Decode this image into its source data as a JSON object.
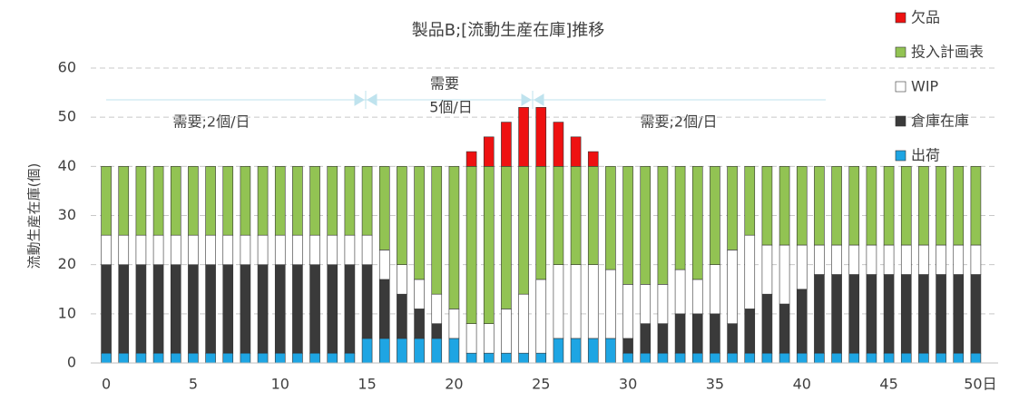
{
  "chart_data": {
    "type": "stacked_bar",
    "title": "製品B;[流動生産在庫]推移",
    "y_label": "流動生産在庫(個)",
    "annotations": [
      "需要;2個/日",
      "需要",
      "5個/日",
      "需要;2個/日"
    ],
    "x": [
      0,
      1,
      2,
      3,
      4,
      5,
      6,
      7,
      8,
      9,
      10,
      11,
      12,
      13,
      14,
      15,
      16,
      17,
      18,
      19,
      20,
      21,
      22,
      23,
      24,
      25,
      26,
      27,
      28,
      29,
      30,
      31,
      32,
      33,
      34,
      35,
      36,
      37,
      38,
      39,
      40,
      41,
      42,
      43,
      44,
      45,
      46,
      47,
      48,
      49,
      50
    ],
    "xlim": [
      -0.5,
      50.5
    ],
    "xticks": [
      0,
      5,
      10,
      15,
      20,
      25,
      30,
      35,
      40,
      45,
      {
        "value": 50,
        "label": "50日"
      }
    ],
    "ylim": [
      0,
      60
    ],
    "yticks": [
      0,
      10,
      20,
      30,
      40,
      50,
      60
    ],
    "grid": true,
    "series": [
      {
        "name": "出荷",
        "color": "#1ea5e3",
        "values": [
          2,
          2,
          2,
          2,
          2,
          2,
          2,
          2,
          2,
          2,
          2,
          2,
          2,
          2,
          2,
          5,
          5,
          5,
          5,
          5,
          5,
          2,
          2,
          2,
          2,
          2,
          5,
          5,
          5,
          5,
          2,
          2,
          2,
          2,
          2,
          2,
          2,
          2,
          2,
          2,
          2,
          2,
          2,
          2,
          2,
          2,
          2,
          2,
          2,
          2,
          2
        ]
      },
      {
        "name": "倉庫在庫",
        "color": "#3a3a3a",
        "values": [
          18,
          18,
          18,
          18,
          18,
          18,
          18,
          18,
          18,
          18,
          18,
          18,
          18,
          18,
          18,
          15,
          12,
          9,
          6,
          3,
          0,
          0,
          0,
          0,
          0,
          0,
          0,
          0,
          0,
          0,
          3,
          6,
          6,
          8,
          8,
          8,
          6,
          9,
          12,
          10,
          13,
          16,
          16,
          16,
          16,
          16,
          16,
          16,
          16,
          16,
          16
        ]
      },
      {
        "name": "WIP",
        "color": "#ffffff",
        "values": [
          6,
          6,
          6,
          6,
          6,
          6,
          6,
          6,
          6,
          6,
          6,
          6,
          6,
          6,
          6,
          6,
          6,
          6,
          6,
          6,
          6,
          6,
          6,
          9,
          12,
          15,
          15,
          15,
          15,
          14,
          11,
          8,
          8,
          9,
          7,
          10,
          15,
          15,
          10,
          12,
          9,
          6,
          6,
          6,
          6,
          6,
          6,
          6,
          6,
          6,
          6
        ]
      },
      {
        "name": "投入計画表",
        "color": "#92c353",
        "values": [
          14,
          14,
          14,
          14,
          14,
          14,
          14,
          14,
          14,
          14,
          14,
          14,
          14,
          14,
          14,
          14,
          17,
          20,
          23,
          26,
          29,
          32,
          32,
          29,
          26,
          23,
          20,
          20,
          20,
          21,
          24,
          24,
          24,
          21,
          23,
          20,
          17,
          14,
          16,
          16,
          16,
          16,
          16,
          16,
          16,
          16,
          16,
          16,
          16,
          16,
          16
        ]
      },
      {
        "name": "欠品",
        "color": "#ee1111",
        "values": [
          0,
          0,
          0,
          0,
          0,
          0,
          0,
          0,
          0,
          0,
          0,
          0,
          0,
          0,
          0,
          0,
          0,
          0,
          0,
          0,
          0,
          3,
          6,
          9,
          12,
          12,
          9,
          6,
          3,
          0,
          0,
          0,
          0,
          0,
          0,
          0,
          0,
          0,
          0,
          0,
          0,
          0,
          0,
          0,
          0,
          0,
          0,
          0,
          0,
          0,
          0
        ]
      }
    ]
  }
}
